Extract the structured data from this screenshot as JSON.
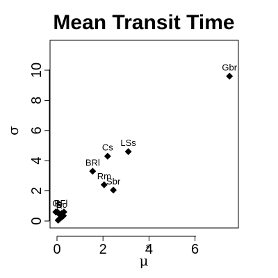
{
  "chart_data": {
    "type": "scatter",
    "title": "Mean Transit Time",
    "xlabel": "μ",
    "xlabel_sub": "*",
    "ylabel": "σ",
    "xlim": [
      -0.3,
      7.8
    ],
    "ylim": [
      -0.3,
      12
    ],
    "xticks": [
      0,
      2,
      4,
      6
    ],
    "yticks": [
      0,
      2,
      4,
      6,
      8,
      10
    ],
    "grid": false,
    "marker": "diamond",
    "points": [
      {
        "label": "Gbr",
        "x": 7.5,
        "y": 9.6
      },
      {
        "label": "LSs",
        "x": 3.1,
        "y": 4.6
      },
      {
        "label": "Cs",
        "x": 2.2,
        "y": 4.3
      },
      {
        "label": "BRl",
        "x": 1.55,
        "y": 3.3
      },
      {
        "label": "Rm",
        "x": 2.05,
        "y": 2.4
      },
      {
        "label": "Sbr",
        "x": 2.45,
        "y": 2.05
      },
      {
        "label": "Fl",
        "x": 0.3,
        "y": 0.6
      },
      {
        "label": "Bc",
        "x": 0.2,
        "y": 0.5
      },
      {
        "label": "R",
        "x": 0.1,
        "y": 0.45
      },
      {
        "label": "B",
        "x": 0.02,
        "y": 0.6
      },
      {
        "label": "G",
        "x": -0.05,
        "y": 0.6
      },
      {
        "label": "",
        "x": 0.05,
        "y": 0.05
      },
      {
        "label": "",
        "x": 0.12,
        "y": 0.15
      },
      {
        "label": "",
        "x": 0.2,
        "y": 0.25
      },
      {
        "label": "",
        "x": 0.28,
        "y": 0.35
      }
    ]
  }
}
